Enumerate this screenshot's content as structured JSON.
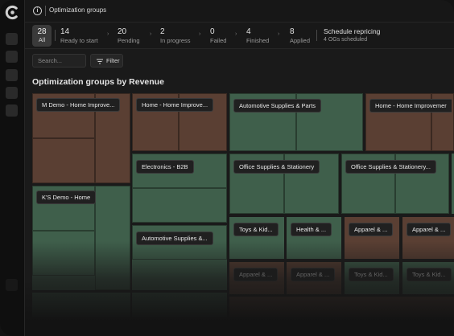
{
  "header": {
    "title": "Optimization groups"
  },
  "status": {
    "all": {
      "count": "28",
      "label": "All"
    },
    "items": [
      {
        "count": "14",
        "label": "Ready to start"
      },
      {
        "count": "20",
        "label": "Pending"
      },
      {
        "count": "2",
        "label": "In progress"
      },
      {
        "count": "0",
        "label": "Failed"
      },
      {
        "count": "4",
        "label": "Finished"
      },
      {
        "count": "8",
        "label": "Applied"
      }
    ],
    "schedule": {
      "title": "Schedule repricing",
      "subtitle": "4 OGs scheduled"
    }
  },
  "toolbar": {
    "search_placeholder": "Search...",
    "filter_label": "Filter"
  },
  "section": {
    "title": "Optimization groups by Revenue"
  },
  "treemap": {
    "labels": [
      "M Demo - Home Improve...",
      "Home - Home Improve...",
      "Automotive Supplies & Parts",
      "Home - Home Improvemer",
      "K'S Demo - Home",
      "Electronics - B2B",
      "Office Supplies & Stationery",
      "Office Supplies & Stationery...",
      "Automotive Supplies &...",
      "Toys & Kid...",
      "Health & ...",
      "Apparel & ...",
      "Apparel & ...",
      "Apparel & ...",
      "Apparel & ...",
      "Toys & Kid...",
      "Toys & Kid..."
    ],
    "colors": {
      "brown": "#5a3f33",
      "green": "#3f5f4b"
    }
  }
}
